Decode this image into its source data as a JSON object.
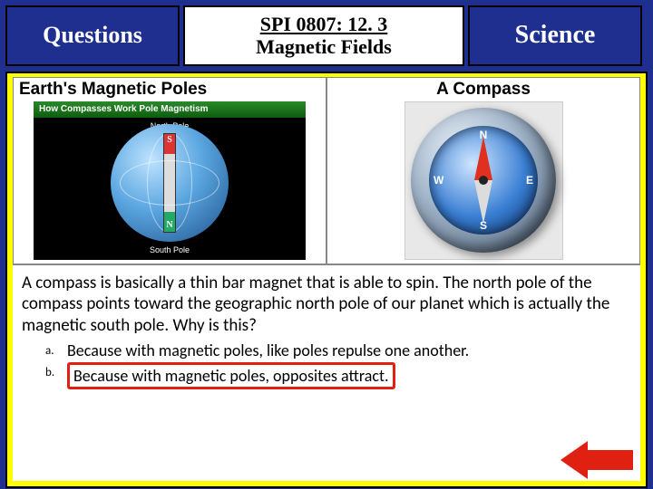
{
  "header": {
    "left": "Questions",
    "mid_line1": "SPI  0807: 12. 3",
    "mid_line2": "Magnetic Fields",
    "right": "Science"
  },
  "panel": {
    "left_title": "Earth's Magnetic Poles",
    "right_title": "A Compass",
    "earth": {
      "banner": "How Compasses Work   Pole Magnetism",
      "north_label": "North Pole",
      "south_label": "South Pole",
      "bar_top": "S",
      "bar_bottom": "N"
    },
    "compass": {
      "N": "N",
      "S": "S",
      "E": "E",
      "W": "W"
    }
  },
  "question_text": "A compass is basically a thin bar magnet that is able to spin. The north pole of the compass  points toward the geographic north pole of our planet which is actually the magnetic south pole. Why is this?",
  "answers": {
    "a_letter": "a.",
    "a_text": "Because with magnetic poles, like poles repulse one another.",
    "b_letter": "b.",
    "b_text": "Because with magnetic poles, opposites attract."
  },
  "colors": {
    "frame": "#1e2f8f",
    "highlight": "#ffff00",
    "answer_box": "#e02010"
  }
}
